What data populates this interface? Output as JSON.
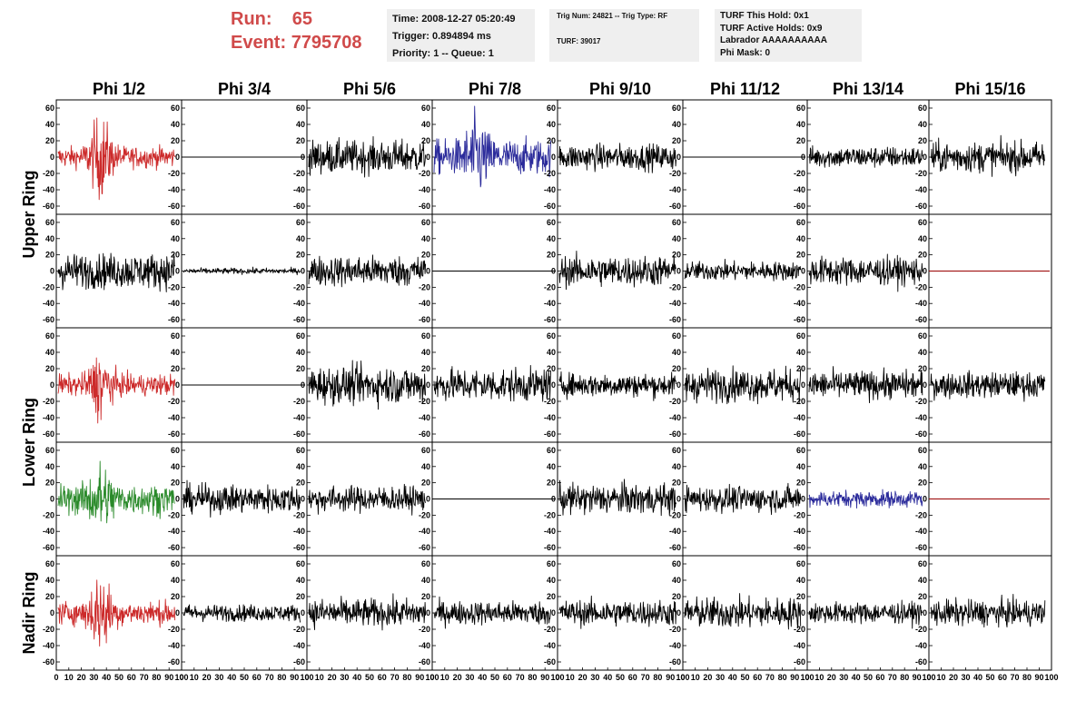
{
  "header": {
    "run_label": "Run:",
    "run_value": "65",
    "event_label": "Event:",
    "event_value": "7795708",
    "time_line": "Time: 2008-12-27 05:20:49",
    "trigger_line": "Trigger: 0.894894 ms",
    "priority_line": "Priority: 1 -- Queue: 1",
    "trig_line": "Trig Num: 24821 -- Trig Type: RF",
    "turf_line": "TURF: 39017",
    "turf_hold": "TURF This Hold: 0x1",
    "turf_active": "TURF Active Holds: 0x9",
    "labrador": "Labrador AAAAAAAAAA",
    "phi_mask": "Phi Mask: 0"
  },
  "chart_data": {
    "type": "line",
    "title": "",
    "columns": [
      "Phi 1/2",
      "Phi 3/4",
      "Phi 5/6",
      "Phi 7/8",
      "Phi 9/10",
      "Phi 11/12",
      "Phi 13/14",
      "Phi 15/16"
    ],
    "ring_labels": [
      "Upper Ring",
      "Lower Ring",
      "Nadir Ring"
    ],
    "xlim": [
      0,
      100
    ],
    "ylim": [
      -70,
      70
    ],
    "yticks": [
      -60,
      -40,
      -20,
      0,
      20,
      40,
      60
    ],
    "xticks": [
      "0",
      "10",
      "20",
      "30",
      "40",
      "50",
      "60",
      "70",
      "80",
      "90",
      "100"
    ],
    "colors": {
      "black": "#000000",
      "red": "#cc2a2a",
      "blue": "#2b2b9b",
      "green": "#2a8a2a",
      "darkred": "#990000"
    },
    "panels": [
      [
        {
          "color": "red",
          "amp": 9,
          "burst": 28,
          "flat": false
        },
        {
          "color": "black",
          "amp": 0,
          "burst": 0,
          "flat": true
        },
        {
          "color": "black",
          "amp": 14,
          "burst": 0,
          "flat": false
        },
        {
          "color": "blue",
          "amp": 15,
          "burst": 22,
          "flat": false
        },
        {
          "color": "black",
          "amp": 11,
          "burst": 0,
          "flat": false
        },
        {
          "color": "black",
          "amp": 0,
          "burst": 0,
          "flat": true
        },
        {
          "color": "black",
          "amp": 9,
          "burst": 0,
          "flat": false
        },
        {
          "color": "black",
          "amp": 13,
          "burst": 0,
          "flat": false
        }
      ],
      [
        {
          "color": "black",
          "amp": 15,
          "burst": 0,
          "flat": false
        },
        {
          "color": "black",
          "amp": 2.5,
          "burst": 0,
          "flat": false
        },
        {
          "color": "black",
          "amp": 13,
          "burst": 0,
          "flat": false
        },
        {
          "color": "black",
          "amp": 0,
          "burst": 0,
          "flat": true
        },
        {
          "color": "black",
          "amp": 13,
          "burst": 0,
          "flat": false
        },
        {
          "color": "black",
          "amp": 8,
          "burst": 0,
          "flat": false
        },
        {
          "color": "black",
          "amp": 12,
          "burst": 0,
          "flat": false
        },
        {
          "color": "darkred",
          "amp": 0,
          "burst": 0,
          "flat": true
        }
      ],
      [
        {
          "color": "red",
          "amp": 9,
          "burst": 22,
          "flat": false
        },
        {
          "color": "black",
          "amp": 0,
          "burst": 0,
          "flat": true
        },
        {
          "color": "black",
          "amp": 16,
          "burst": 0,
          "flat": false
        },
        {
          "color": "black",
          "amp": 14,
          "burst": 0,
          "flat": false
        },
        {
          "color": "black",
          "amp": 10,
          "burst": 0,
          "flat": false
        },
        {
          "color": "black",
          "amp": 14,
          "burst": 0,
          "flat": false
        },
        {
          "color": "black",
          "amp": 12,
          "burst": 0,
          "flat": false
        },
        {
          "color": "black",
          "amp": 11,
          "burst": 0,
          "flat": false
        }
      ],
      [
        {
          "color": "green",
          "amp": 13,
          "burst": 20,
          "flat": false
        },
        {
          "color": "black",
          "amp": 12,
          "burst": 0,
          "flat": false
        },
        {
          "color": "black",
          "amp": 11,
          "burst": 0,
          "flat": false
        },
        {
          "color": "black",
          "amp": 0,
          "burst": 0,
          "flat": true
        },
        {
          "color": "black",
          "amp": 13,
          "burst": 0,
          "flat": false
        },
        {
          "color": "black",
          "amp": 11,
          "burst": 0,
          "flat": false
        },
        {
          "color": "blue",
          "amp": 7,
          "burst": 0,
          "flat": false
        },
        {
          "color": "darkred",
          "amp": 0,
          "burst": 0,
          "flat": true
        }
      ],
      [
        {
          "color": "red",
          "amp": 10,
          "burst": 26,
          "flat": false
        },
        {
          "color": "black",
          "amp": 7,
          "burst": 0,
          "flat": false
        },
        {
          "color": "black",
          "amp": 12,
          "burst": 0,
          "flat": false
        },
        {
          "color": "black",
          "amp": 10,
          "burst": 0,
          "flat": false
        },
        {
          "color": "black",
          "amp": 11,
          "burst": 0,
          "flat": false
        },
        {
          "color": "black",
          "amp": 13,
          "burst": 0,
          "flat": false
        },
        {
          "color": "black",
          "amp": 9,
          "burst": 0,
          "flat": false
        },
        {
          "color": "black",
          "amp": 11,
          "burst": 0,
          "flat": false
        }
      ]
    ]
  }
}
